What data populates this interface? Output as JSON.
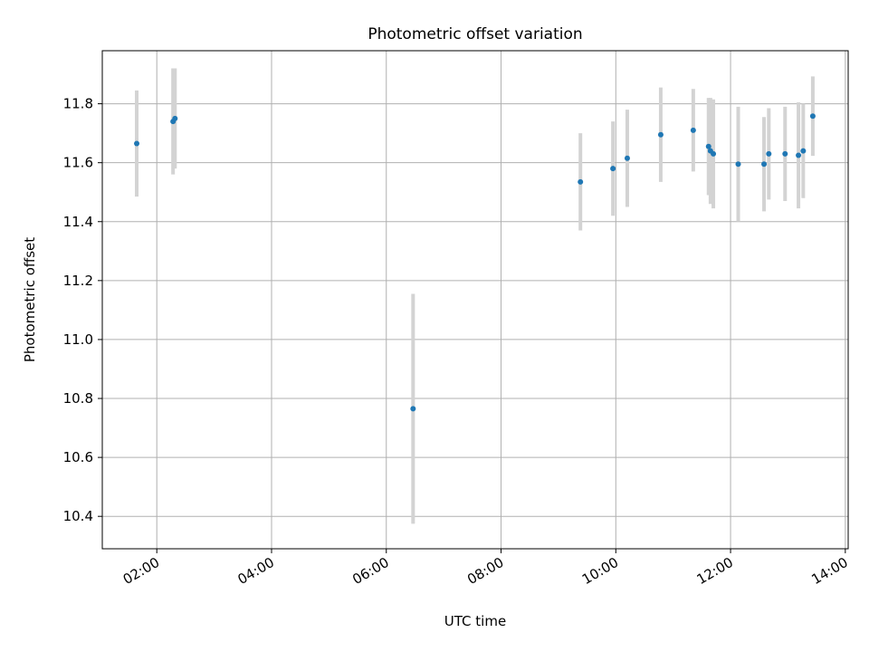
{
  "chart_data": {
    "type": "scatter",
    "title": "Photometric offset variation",
    "xlabel": "UTC time",
    "ylabel": "Photometric offset",
    "xlim": [
      "01:03",
      "14:03"
    ],
    "ylim": [
      10.29,
      11.98
    ],
    "x_ticks": [
      "02:00",
      "04:00",
      "06:00",
      "08:00",
      "10:00",
      "12:00",
      "14:00"
    ],
    "y_ticks": [
      10.4,
      10.6,
      10.8,
      11.0,
      11.2,
      11.4,
      11.6,
      11.8
    ],
    "grid": true,
    "point_color": "#1f77b4",
    "error_color": "#d3d3d3",
    "points": [
      {
        "x": "01:39",
        "y": 11.665,
        "err": 0.18
      },
      {
        "x": "02:17",
        "y": 11.74,
        "err": 0.18
      },
      {
        "x": "02:19",
        "y": 11.75,
        "err": 0.17
      },
      {
        "x": "06:28",
        "y": 10.765,
        "err": 0.39
      },
      {
        "x": "09:23",
        "y": 11.535,
        "err": 0.165
      },
      {
        "x": "09:57",
        "y": 11.58,
        "err": 0.16
      },
      {
        "x": "10:12",
        "y": 11.615,
        "err": 0.165
      },
      {
        "x": "10:47",
        "y": 11.695,
        "err": 0.16
      },
      {
        "x": "11:21",
        "y": 11.71,
        "err": 0.14
      },
      {
        "x": "11:37",
        "y": 11.655,
        "err": 0.165
      },
      {
        "x": "11:39",
        "y": 11.64,
        "err": 0.18
      },
      {
        "x": "11:42",
        "y": 11.63,
        "err": 0.185
      },
      {
        "x": "12:08",
        "y": 11.595,
        "err": 0.195
      },
      {
        "x": "12:35",
        "y": 11.595,
        "err": 0.16
      },
      {
        "x": "12:40",
        "y": 11.63,
        "err": 0.155
      },
      {
        "x": "12:57",
        "y": 11.63,
        "err": 0.16
      },
      {
        "x": "13:11",
        "y": 11.625,
        "err": 0.18
      },
      {
        "x": "13:16",
        "y": 11.64,
        "err": 0.16
      },
      {
        "x": "13:26",
        "y": 11.758,
        "err": 0.135
      }
    ]
  }
}
